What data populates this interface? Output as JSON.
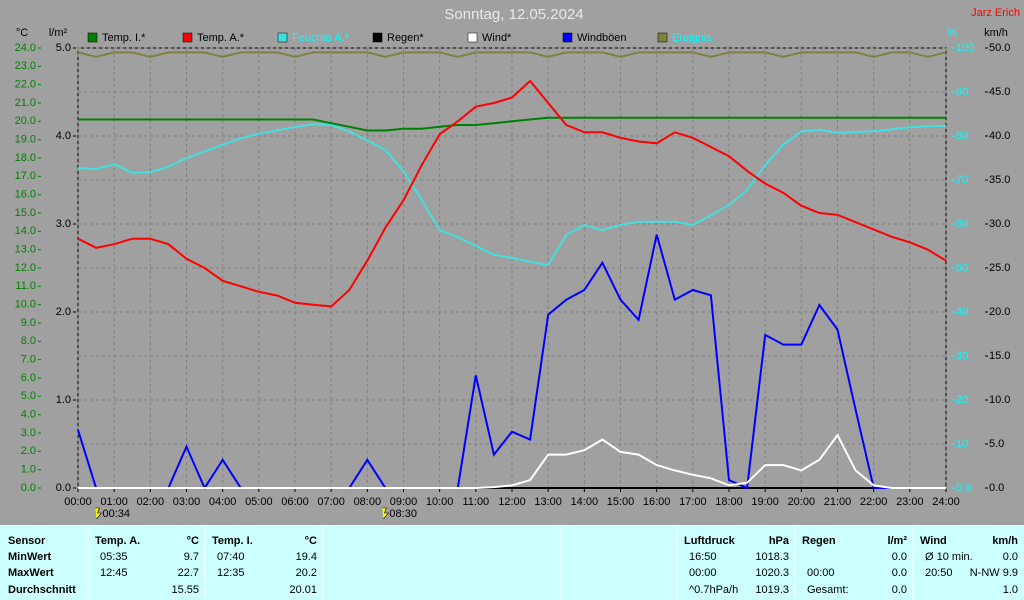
{
  "chart_data": {
    "type": "line",
    "title": "Sonntag, 12.05.2024",
    "author": "Jarz Erich",
    "y_unit": "°C",
    "y3_unit": "l/m²",
    "y2_unit": "%",
    "y4_unit": "km/h",
    "x": [
      0,
      0.5,
      1,
      1.5,
      2,
      2.5,
      3,
      3.5,
      4,
      4.5,
      5,
      5.5,
      6,
      6.5,
      7,
      7.5,
      8,
      8.5,
      9,
      9.5,
      10,
      10.5,
      11,
      11.5,
      12,
      12.5,
      13,
      13.5,
      14,
      14.5,
      15,
      15.5,
      16,
      16.5,
      17,
      17.5,
      18,
      18.5,
      19,
      19.5,
      20,
      20.5,
      21,
      21.5,
      22,
      22.5,
      23,
      23.5,
      24
    ],
    "xlim": [
      0,
      24
    ],
    "xticks": [
      {
        "value": 0,
        "label": "00:00"
      },
      {
        "value": 1,
        "label": "01:00"
      },
      {
        "value": 2,
        "label": "02:00"
      },
      {
        "value": 3,
        "label": "03:00"
      },
      {
        "value": 4,
        "label": "04:00"
      },
      {
        "value": 5,
        "label": "05:00"
      },
      {
        "value": 6,
        "label": "06:00"
      },
      {
        "value": 7,
        "label": "07:00"
      },
      {
        "value": 8,
        "label": "08:00"
      },
      {
        "value": 9,
        "label": "09:00"
      },
      {
        "value": 10,
        "label": "10:00"
      },
      {
        "value": 11,
        "label": "11:00"
      },
      {
        "value": 12,
        "label": "12:00"
      },
      {
        "value": 13,
        "label": "13:00"
      },
      {
        "value": 14,
        "label": "14:00"
      },
      {
        "value": 15,
        "label": "15:00"
      },
      {
        "value": 16,
        "label": "16:00"
      },
      {
        "value": 17,
        "label": "17:00"
      },
      {
        "value": 18,
        "label": "18:00"
      },
      {
        "value": 19,
        "label": "19:00"
      },
      {
        "value": 20,
        "label": "20:00"
      },
      {
        "value": 21,
        "label": "21:00"
      },
      {
        "value": 22,
        "label": "22:00"
      },
      {
        "value": 23,
        "label": "23:00"
      },
      {
        "value": 24,
        "label": "24:00"
      }
    ],
    "ylim": [
      0,
      24
    ],
    "yticks": [
      {
        "value": 0,
        "label": "0.0"
      },
      {
        "value": 1,
        "label": "1.0"
      },
      {
        "value": 2,
        "label": "2.0"
      },
      {
        "value": 3,
        "label": "3.0"
      },
      {
        "value": 4,
        "label": "4.0"
      },
      {
        "value": 5,
        "label": "5.0"
      },
      {
        "value": 6,
        "label": "6.0"
      },
      {
        "value": 7,
        "label": "7.0"
      },
      {
        "value": 8,
        "label": "8.0"
      },
      {
        "value": 9,
        "label": "9.0"
      },
      {
        "value": 10,
        "label": "10.0"
      },
      {
        "value": 11,
        "label": "11.0"
      },
      {
        "value": 12,
        "label": "12.0"
      },
      {
        "value": 13,
        "label": "13.0"
      },
      {
        "value": 14,
        "label": "14.0"
      },
      {
        "value": 15,
        "label": "15.0"
      },
      {
        "value": 16,
        "label": "16.0"
      },
      {
        "value": 17,
        "label": "17.0"
      },
      {
        "value": 18,
        "label": "18.0"
      },
      {
        "value": 19,
        "label": "19.0"
      },
      {
        "value": 20,
        "label": "20.0"
      },
      {
        "value": 21,
        "label": "21.0"
      },
      {
        "value": 22,
        "label": "22.0"
      },
      {
        "value": 23,
        "label": "23.0"
      },
      {
        "value": 24,
        "label": "24.0"
      }
    ],
    "y3lim": [
      0,
      5
    ],
    "y3ticks": [
      {
        "value": 0,
        "label": "0.0"
      },
      {
        "value": 1,
        "label": "1.0"
      },
      {
        "value": 2,
        "label": "2.0"
      },
      {
        "value": 3,
        "label": "3.0"
      },
      {
        "value": 4,
        "label": "4.0"
      },
      {
        "value": 5,
        "label": "5.0"
      }
    ],
    "y2lim": [
      0,
      100
    ],
    "y2ticks": [
      {
        "value": 0,
        "label": "0.0"
      },
      10,
      20,
      30,
      40,
      50,
      60,
      70,
      80,
      90,
      100
    ],
    "y4lim": [
      0,
      50
    ],
    "y4ticks": [
      {
        "value": 0,
        "label": "0.0"
      },
      {
        "value": 5,
        "label": "5.0"
      },
      {
        "value": 10,
        "label": "10.0"
      },
      {
        "value": 15,
        "label": "15.0"
      },
      {
        "value": 20,
        "label": "20.0"
      },
      {
        "value": 25,
        "label": "25.0"
      },
      {
        "value": 30,
        "label": "30.0"
      },
      {
        "value": 35,
        "label": "35.0"
      },
      {
        "value": 40,
        "label": "40.0"
      },
      {
        "value": 45,
        "label": "45.0"
      },
      {
        "value": 50,
        "label": "50.0"
      }
    ],
    "grid": true,
    "series": [
      {
        "name": "Temp. I.*",
        "color": "#008000",
        "axis": "y",
        "values": [
          20.1,
          20.1,
          20.1,
          20.1,
          20.1,
          20.1,
          20.1,
          20.1,
          20.1,
          20.1,
          20.1,
          20.1,
          20.1,
          20.1,
          19.9,
          19.7,
          19.5,
          19.5,
          19.6,
          19.6,
          19.7,
          19.8,
          19.8,
          19.9,
          20.0,
          20.1,
          20.2,
          20.2,
          20.2,
          20.2,
          20.2,
          20.2,
          20.2,
          20.2,
          20.2,
          20.2,
          20.2,
          20.2,
          20.2,
          20.2,
          20.2,
          20.2,
          20.2,
          20.2,
          20.2,
          20.2,
          20.2,
          20.2,
          20.2
        ]
      },
      {
        "name": "Temp. A.*",
        "color": "#ff0000",
        "axis": "y",
        "values": [
          13.6,
          13.1,
          13.3,
          13.6,
          13.6,
          13.3,
          12.5,
          12.0,
          11.3,
          11.0,
          10.7,
          10.5,
          10.1,
          10.0,
          9.9,
          10.8,
          12.4,
          14.2,
          15.7,
          17.6,
          19.3,
          20.0,
          20.8,
          21.0,
          21.3,
          22.2,
          21.0,
          19.8,
          19.4,
          19.4,
          19.1,
          18.9,
          18.8,
          19.4,
          19.1,
          18.6,
          18.1,
          17.3,
          16.6,
          16.1,
          15.4,
          15.0,
          14.9,
          14.5,
          14.1,
          13.7,
          13.4,
          13.0,
          12.4
        ]
      },
      {
        "name": "Feuchte A.*",
        "color": "#40e0e0",
        "label_color": "#00ffff",
        "axis": "y2",
        "values": [
          72.7,
          72.5,
          73.6,
          71.6,
          71.8,
          73,
          75,
          76.5,
          78,
          79.5,
          80.5,
          81.3,
          82,
          82.7,
          82.5,
          81,
          79,
          76.8,
          72,
          65.5,
          58.6,
          57,
          55,
          53,
          52.3,
          51.4,
          50.7,
          57.5,
          59.8,
          58.6,
          59.8,
          60.5,
          60.5,
          60.5,
          59.8,
          62,
          64.3,
          67.7,
          73.4,
          78,
          81,
          81.4,
          80.7,
          80.9,
          81.1,
          81.5,
          82,
          82.2,
          82.3
        ]
      },
      {
        "name": "Regen*",
        "color": "#000000",
        "axis": "y3",
        "values": [
          0,
          0,
          0,
          0,
          0,
          0,
          0,
          0,
          0,
          0,
          0,
          0,
          0,
          0,
          0,
          0,
          0,
          0,
          0,
          0,
          0,
          0,
          0,
          0,
          0,
          0,
          0,
          0,
          0,
          0,
          0,
          0,
          0,
          0,
          0,
          0,
          0,
          0,
          0,
          0,
          0,
          0,
          0,
          0,
          0,
          0,
          0,
          0,
          0
        ]
      },
      {
        "name": "Wind*",
        "color": "#ffffff",
        "axis": "y4",
        "values": [
          0,
          0,
          0,
          0,
          0,
          0,
          0,
          0,
          0,
          0,
          0,
          0,
          0,
          0,
          0,
          0,
          0,
          0,
          0,
          0,
          0,
          0,
          0,
          0.1,
          0.3,
          0.9,
          3.8,
          3.8,
          4.3,
          5.5,
          4.1,
          3.8,
          2.6,
          2.0,
          1.5,
          1.1,
          0.3,
          0.6,
          2.6,
          2.6,
          2.0,
          3.2,
          6.0,
          2.0,
          0.3,
          0,
          0,
          0,
          0
        ]
      },
      {
        "name": "Windböen",
        "color": "#0000ff",
        "axis": "y4",
        "values": [
          6.6,
          0,
          0,
          0,
          0,
          0,
          4.7,
          0,
          3.2,
          0,
          0,
          0,
          0,
          0,
          0,
          0,
          3.2,
          0,
          0,
          0,
          0,
          0,
          12.8,
          3.8,
          6.4,
          5.5,
          19.7,
          21.4,
          22.5,
          25.6,
          21.4,
          19.1,
          28.8,
          21.4,
          22.5,
          21.9,
          0.9,
          0,
          17.4,
          16.3,
          16.3,
          20.8,
          18,
          8.9,
          0,
          0,
          0,
          0,
          0
        ]
      },
      {
        "name": "Ereignis",
        "color": "#808040",
        "label_color": "#00ffff",
        "axis": "y2",
        "values": [
          99,
          98,
          99,
          99,
          98,
          99,
          99,
          99,
          98,
          99,
          99,
          99,
          98,
          99,
          99,
          99,
          99,
          98,
          99,
          99,
          99,
          98,
          99,
          99,
          99,
          99,
          98,
          99,
          99,
          99,
          98,
          99,
          99,
          99,
          99,
          98,
          99,
          99,
          99,
          98,
          99,
          99,
          99,
          99,
          98,
          99,
          99,
          98,
          99
        ]
      }
    ],
    "events": [
      {
        "x": 0.5667,
        "label": "00:34"
      },
      {
        "x": 8.5,
        "label": "08:30"
      }
    ]
  },
  "table": {
    "sensor": {
      "header": "Sensor",
      "rows": [
        "MinWert",
        "MaxWert",
        "Durchschnitt"
      ]
    },
    "columns": [
      {
        "header": "Temp. A.",
        "unit": "°C",
        "rows": [
          {
            "time": "05:35",
            "value": "9.7"
          },
          {
            "time": "12:45",
            "value": "22.7"
          },
          {
            "value": "15.55"
          }
        ]
      },
      {
        "header": "Temp. I.",
        "unit": "°C",
        "rows": [
          {
            "time": "07:40",
            "value": "19.4"
          },
          {
            "time": "12:35",
            "value": "20.2"
          },
          {
            "value": "20.01"
          }
        ]
      },
      {
        "header": "Luftdruck",
        "unit": "hPa",
        "rows": [
          {
            "time": "16:50",
            "value": "1018.3"
          },
          {
            "time": "00:00",
            "value": "1020.3"
          },
          {
            "time": "^0.7hPa/h",
            "value": "1019.3"
          }
        ]
      },
      {
        "header": "Regen",
        "unit": "l/m²",
        "rows": [
          {
            "value": "0.0"
          },
          {
            "time": "00:00",
            "value": "0.0"
          },
          {
            "time": "Gesamt:",
            "value": "0.0"
          }
        ]
      },
      {
        "header": "Wind",
        "unit": "km/h",
        "rows": [
          {
            "time": "Ø 10 min.",
            "value": "0.0"
          },
          {
            "time": "20:50",
            "value": "N-NW 9.9"
          },
          {
            "value": "1.0"
          }
        ]
      }
    ]
  }
}
